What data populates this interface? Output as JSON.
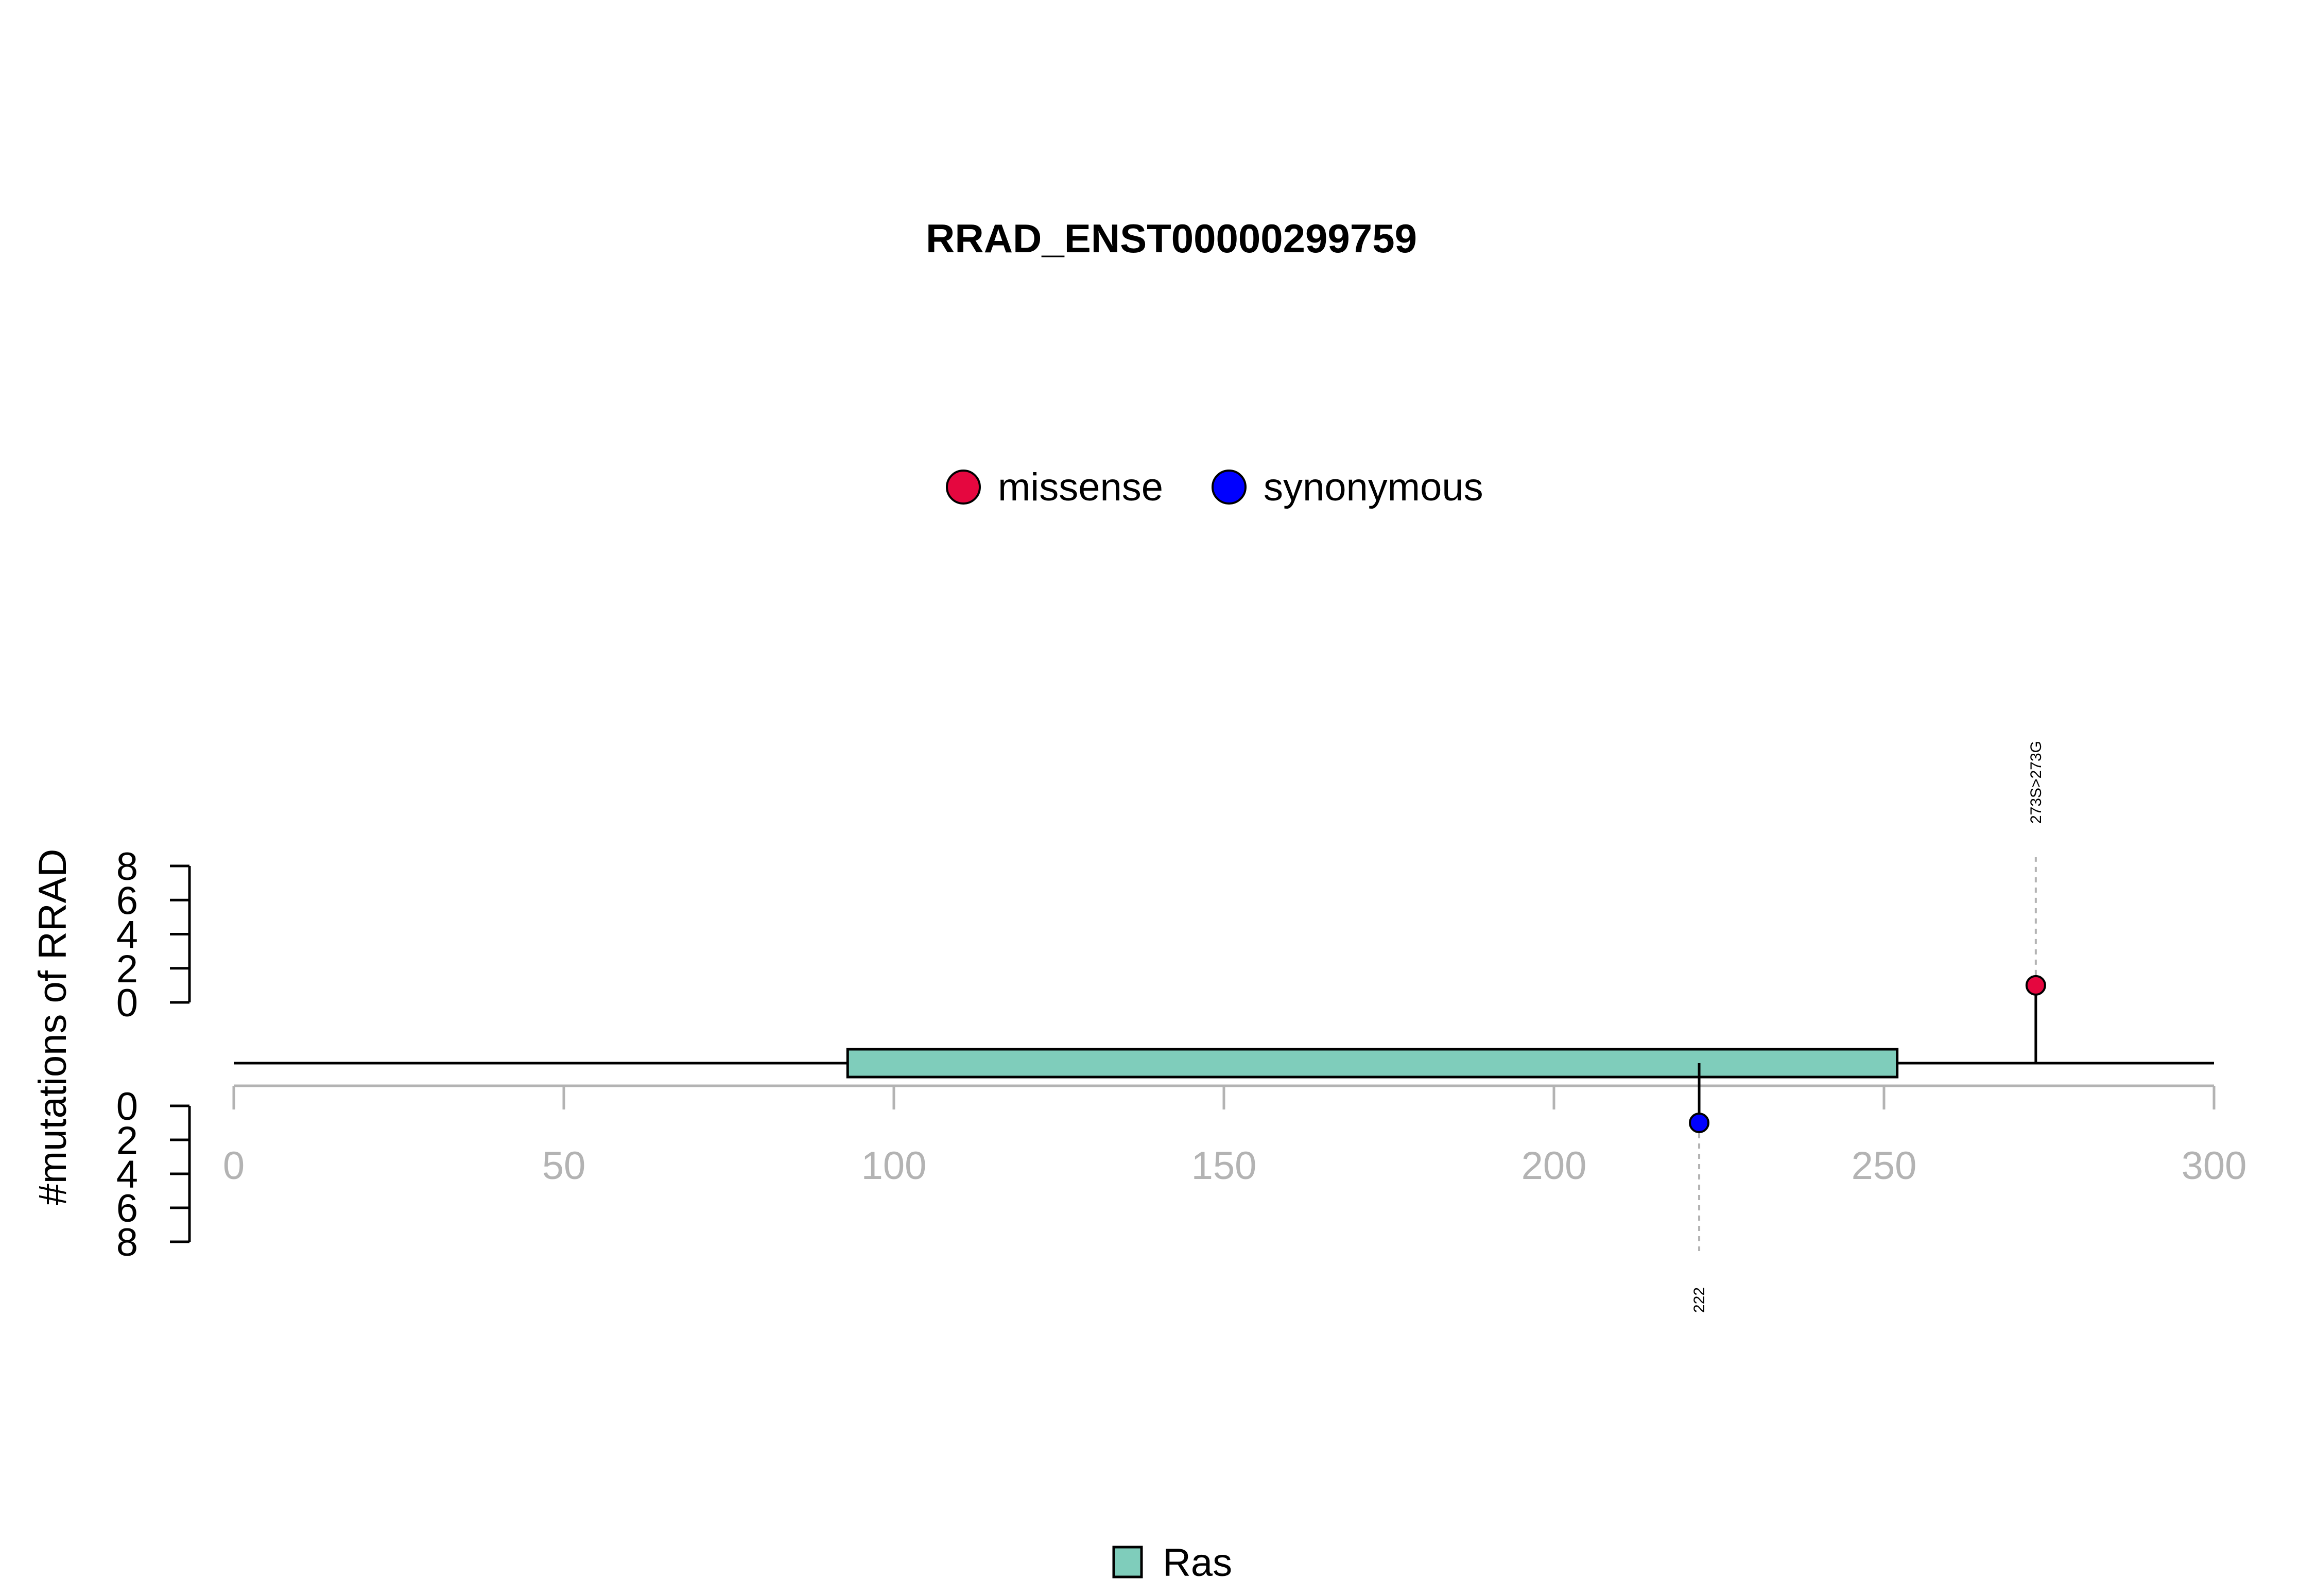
{
  "chart_data": {
    "type": "lollipop",
    "title": "RRAD_ENST00000299759",
    "ylabel": "#mutations of RRAD",
    "xlim": [
      0,
      300
    ],
    "x_ticks": [
      0,
      50,
      100,
      150,
      200,
      250,
      300
    ],
    "upper_y_ticks": [
      0,
      2,
      4,
      6,
      8
    ],
    "lower_y_ticks": [
      0,
      2,
      4,
      6,
      8
    ],
    "legend": [
      {
        "label": "missense",
        "color": "#E5073F"
      },
      {
        "label": "synonymous",
        "color": "#0000FF"
      }
    ],
    "domains": [
      {
        "name": "Ras",
        "start": 93,
        "end": 252,
        "color": "#7FCDBB"
      }
    ],
    "mutations": [
      {
        "position": 273,
        "count": 1,
        "type": "missense",
        "side": "top",
        "label": "273S>273G"
      },
      {
        "position": 222,
        "count": 1,
        "type": "synonymous",
        "side": "bottom",
        "label": "222"
      }
    ],
    "domain_legend": [
      {
        "label": "Ras",
        "color": "#7FCDBB"
      }
    ]
  }
}
